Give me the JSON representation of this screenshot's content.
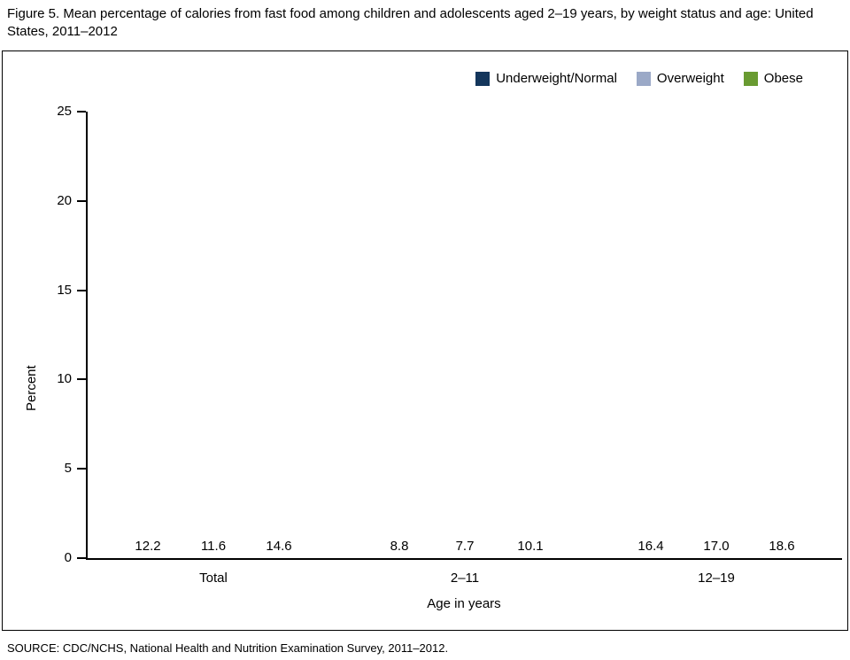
{
  "title": "Figure 5. Mean percentage of calories from fast food among children and adolescents aged 2–19 years, by weight status and age: United States, 2011–2012",
  "source": "SOURCE: CDC/NCHS, National Health and Nutrition Examination Survey, 2011–2012.",
  "chart_data": {
    "type": "bar",
    "title": "Figure 5. Mean percentage of calories from fast food among children and adolescents aged 2–19 years, by weight status and age: United States, 2011–2012",
    "categories": [
      "Total",
      "2–11",
      "12–19"
    ],
    "series": [
      {
        "name": "Underweight/Normal",
        "color": "#14365c",
        "values": [
          12.2,
          8.8,
          16.4
        ]
      },
      {
        "name": "Overweight",
        "color": "#9ba9c7",
        "values": [
          11.6,
          7.7,
          17.0
        ]
      },
      {
        "name": "Obese",
        "color": "#699b31",
        "values": [
          14.6,
          10.1,
          18.6
        ]
      }
    ],
    "xlabel": "Age in years",
    "ylabel": "Percent",
    "ylim": [
      0,
      25
    ],
    "yticks": [
      0,
      5,
      10,
      15,
      20,
      25
    ],
    "grid": false,
    "legend_position": "top-right",
    "value_labels": true,
    "value_label_decimals": 1
  }
}
